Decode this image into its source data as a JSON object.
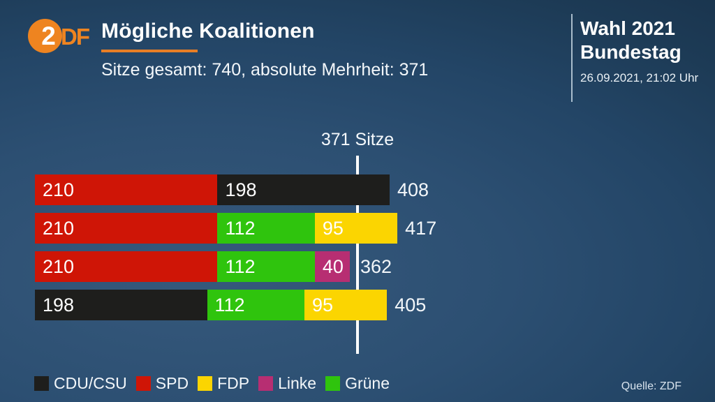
{
  "header": {
    "logo_circle_text": "2",
    "logo_suffix": "DF",
    "title": "Mögliche Koalitionen",
    "subtitle": "Sitze gesamt: 740, absolute Mehrheit: 371",
    "event_line1": "Wahl 2021",
    "event_line2": "Bundestag",
    "datetime": "26.09.2021, 21:02 Uhr"
  },
  "source": "Quelle: ZDF",
  "colors": {
    "accent_orange": "#e87e25",
    "logo_orange": "#ee8420",
    "background_dark": "#1d3b56",
    "background_light": "#36597c",
    "majority_line": "#ffffff"
  },
  "chart_data": {
    "type": "bar",
    "orientation": "horizontal-stacked",
    "title": "Mögliche Koalitionen",
    "total_seats": 740,
    "majority_value": 371,
    "majority_label": "371 Sitze",
    "axis_origin_seats": 0,
    "parties": {
      "CDU/CSU": "#1e1e1c",
      "SPD": "#cf1506",
      "FDP": "#fbd501",
      "Linke": "#b72e72",
      "Grüne": "#2fc40d"
    },
    "coalitions": [
      {
        "segments": [
          {
            "party": "SPD",
            "seats": 210
          },
          {
            "party": "CDU/CSU",
            "seats": 198
          }
        ],
        "total": 408
      },
      {
        "segments": [
          {
            "party": "SPD",
            "seats": 210
          },
          {
            "party": "Grüne",
            "seats": 112
          },
          {
            "party": "FDP",
            "seats": 95
          }
        ],
        "total": 417
      },
      {
        "segments": [
          {
            "party": "SPD",
            "seats": 210
          },
          {
            "party": "Grüne",
            "seats": 112
          },
          {
            "party": "Linke",
            "seats": 40
          }
        ],
        "total": 362
      },
      {
        "segments": [
          {
            "party": "CDU/CSU",
            "seats": 198
          },
          {
            "party": "Grüne",
            "seats": 112
          },
          {
            "party": "FDP",
            "seats": 95
          }
        ],
        "total": 405
      }
    ],
    "legend": [
      {
        "label": "CDU/CSU",
        "color": "#1e1e1c"
      },
      {
        "label": "SPD",
        "color": "#cf1506"
      },
      {
        "label": "FDP",
        "color": "#fbd501"
      },
      {
        "label": "Linke",
        "color": "#b72e72"
      },
      {
        "label": "Grüne",
        "color": "#2fc40d"
      }
    ]
  }
}
